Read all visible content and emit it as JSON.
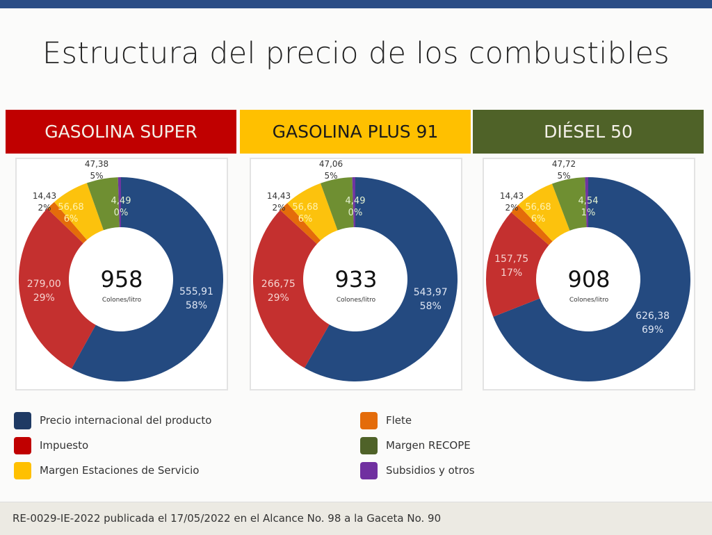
{
  "title": "Estructura del precio de los combustibles",
  "colors": {
    "precio": "#244a80",
    "impuesto": "#c4302f",
    "flete": "#e46c0a",
    "estaciones": "#fcc20d",
    "recope": "#6f8f32",
    "subsidios": "#6f35a0"
  },
  "legend": [
    {
      "key": "precio",
      "label": "Precio internacional del producto",
      "swatch": "#1f3a64"
    },
    {
      "key": "impuesto",
      "label": "Impuesto",
      "swatch": "#c00000"
    },
    {
      "key": "estaciones",
      "label": "Margen Estaciones de Servicio",
      "swatch": "#ffc000"
    },
    {
      "key": "flete",
      "label": "Flete",
      "swatch": "#e46c0a"
    },
    {
      "key": "recope",
      "label": "Margen RECOPE",
      "swatch": "#4f6228"
    },
    {
      "key": "subsidios",
      "label": "Subsidios y otros",
      "swatch": "#7030a0"
    }
  ],
  "chart_data": [
    {
      "type": "pie",
      "title": "GASOLINA SUPER",
      "header_color": "#c00000",
      "header_text_color": "#f4f0e8",
      "total": "958",
      "unit": "Colones/litro",
      "categories": [
        "Precio internacional del producto",
        "Impuesto",
        "Flete",
        "Margen Estaciones de Servicio",
        "Margen RECOPE",
        "Subsidios y otros"
      ],
      "values": [
        555.91,
        279.0,
        14.43,
        56.68,
        47.38,
        4.49
      ],
      "value_labels": [
        "555,91",
        "279,00",
        "14,43",
        "56,68",
        "47,38",
        "4,49"
      ],
      "percent_labels": [
        "58%",
        "29%",
        "2%",
        "6%",
        "5%",
        "0%"
      ]
    },
    {
      "type": "pie",
      "title": "GASOLINA PLUS 91",
      "header_color": "#ffc000",
      "header_text_color": "#1a1a1a",
      "total": "933",
      "unit": "Colones/litro",
      "categories": [
        "Precio internacional del producto",
        "Impuesto",
        "Flete",
        "Margen Estaciones de Servicio",
        "Margen RECOPE",
        "Subsidios y otros"
      ],
      "values": [
        543.97,
        266.75,
        14.43,
        56.68,
        47.06,
        4.49
      ],
      "value_labels": [
        "543,97",
        "266,75",
        "14,43",
        "56,68",
        "47,06",
        "4,49"
      ],
      "percent_labels": [
        "58%",
        "29%",
        "2%",
        "6%",
        "5%",
        "0%"
      ]
    },
    {
      "type": "pie",
      "title": "DIÉSEL 50",
      "header_color": "#4f6228",
      "header_text_color": "#f4f0e8",
      "total": "908",
      "unit": "Colones/litro",
      "categories": [
        "Precio internacional del producto",
        "Impuesto",
        "Flete",
        "Margen Estaciones de Servicio",
        "Margen RECOPE",
        "Subsidios y otros"
      ],
      "values": [
        626.38,
        157.75,
        14.43,
        56.68,
        47.72,
        4.54
      ],
      "value_labels": [
        "626,38",
        "157,75",
        "14,43",
        "56,68",
        "47,72",
        "4,54"
      ],
      "percent_labels": [
        "69%",
        "17%",
        "2%",
        "6%",
        "5%",
        "1%"
      ]
    }
  ],
  "footer": "RE-0029-IE-2022 publicada el 17/05/2022 en el Alcance No. 98 a la Gaceta No. 90"
}
